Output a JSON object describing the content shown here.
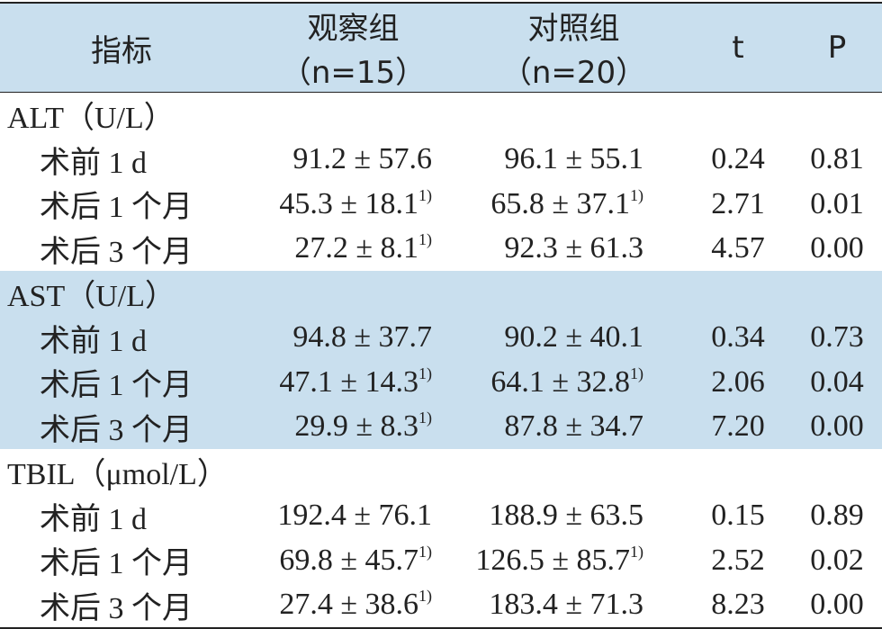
{
  "header": [
    "指标",
    "观察组（n=15）",
    "对照组（n=20）",
    "t",
    "P"
  ],
  "groups": [
    {
      "name": "ALT（U/L）",
      "rows": [
        {
          "label": "术前 1 d",
          "obs": "91.2 ± 57.6",
          "ctrl": "96.1 ± 55.1",
          "t": "0.24",
          "p": "0.81"
        },
        {
          "label": "术后 1 个月",
          "obs": "45.3 ± 18.1",
          "obs_note": "1)",
          "ctrl": "65.8 ± 37.1",
          "ctrl_note": "1)",
          "t": "2.71",
          "p": "0.01"
        },
        {
          "label": "术后 3 个月",
          "obs": "27.2 ± 8.1",
          "obs_note": "1)",
          "ctrl": "92.3 ± 61.3",
          "t": "4.57",
          "p": "0.00"
        }
      ]
    },
    {
      "name": "AST（U/L）",
      "rows": [
        {
          "label": "术前 1 d",
          "obs": "94.8 ± 37.7",
          "ctrl": "90.2 ± 40.1",
          "t": "0.34",
          "p": "0.73"
        },
        {
          "label": "术后 1 个月",
          "obs": "47.1 ± 14.3",
          "obs_note": "1)",
          "ctrl": "64.1 ± 32.8",
          "ctrl_note": "1)",
          "t": "2.06",
          "p": "0.04"
        },
        {
          "label": "术后 3 个月",
          "obs": "29.9 ± 8.3",
          "obs_note": "1)",
          "ctrl": "87.8 ± 34.7",
          "t": "7.20",
          "p": "0.00"
        }
      ]
    },
    {
      "name": "TBIL（μmol/L）",
      "rows": [
        {
          "label": "术前 1 d",
          "obs": "192.4 ± 76.1",
          "ctrl": "188.9 ± 63.5",
          "t": "0.15",
          "p": "0.89"
        },
        {
          "label": "术后 1 个月",
          "obs": "69.8 ± 45.7",
          "obs_note": "1)",
          "ctrl": "126.5 ± 85.7",
          "ctrl_note": "1)",
          "t": "2.52",
          "p": "0.02"
        },
        {
          "label": "术后 3 个月",
          "obs": "27.4 ± 38.6",
          "obs_note": "1)",
          "ctrl": "183.4 ± 71.3",
          "t": "8.23",
          "p": "0.00"
        }
      ]
    }
  ]
}
